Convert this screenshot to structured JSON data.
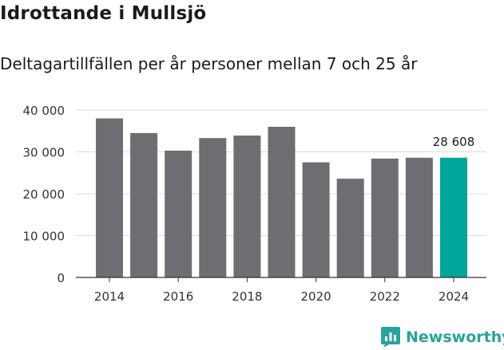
{
  "title": "Idrottande i Mullsjö",
  "subtitle": "Deltagartillfällen per år personer mellan 7 och 25 år",
  "brand": "Newsworthy",
  "colors": {
    "bar": "#6e6d72",
    "highlight": "#00a59b",
    "grid": "#dcdcdc",
    "axis": "#333333",
    "brand": "#2aa39a"
  },
  "icons": {
    "brand": "bar-chart-bubble-icon"
  },
  "chart_data": {
    "type": "bar",
    "categories": [
      "2014",
      "2015",
      "2016",
      "2017",
      "2018",
      "2019",
      "2020",
      "2021",
      "2022",
      "2023",
      "2024"
    ],
    "values": [
      38000,
      34500,
      30300,
      33300,
      33900,
      36000,
      27500,
      23600,
      28400,
      28600,
      28608
    ],
    "highlight_index": 10,
    "highlight_label": "28 608",
    "xtick_labels": [
      "2014",
      "2016",
      "2018",
      "2020",
      "2022",
      "2024"
    ],
    "ytick_values": [
      0,
      10000,
      20000,
      30000,
      40000
    ],
    "ytick_labels": [
      "0",
      "10 000",
      "20 000",
      "30 000",
      "40 000"
    ],
    "ylim": [
      0,
      40000
    ],
    "grid": true
  }
}
